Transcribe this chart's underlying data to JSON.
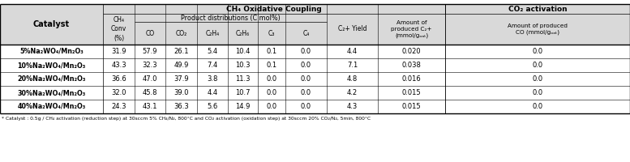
{
  "catalysts": [
    "5%Na₂WO₄/Mn₂O₃",
    "10%Na₂WO₄/Mn₂O₃",
    "20%Na₂WO₄/Mn₂O₃",
    "30%Na₂WO₄/Mn₂O₃",
    "40%Na₂WO₄/Mn₂O₃"
  ],
  "data": [
    [
      31.9,
      57.9,
      26.1,
      5.4,
      10.4,
      0.1,
      0.0,
      4.4,
      0.02,
      0.0
    ],
    [
      43.3,
      32.3,
      49.9,
      7.4,
      10.3,
      0.1,
      0.0,
      7.1,
      0.038,
      0.0
    ],
    [
      36.6,
      47.0,
      37.9,
      3.8,
      11.3,
      0.0,
      0.0,
      4.8,
      0.016,
      0.0
    ],
    [
      32.0,
      45.8,
      39.0,
      4.4,
      10.7,
      0.0,
      0.0,
      4.2,
      0.015,
      0.0
    ],
    [
      24.3,
      43.1,
      36.3,
      5.6,
      14.9,
      0.0,
      0.0,
      4.3,
      0.015,
      0.0
    ]
  ],
  "footnote": "* Catalyst : 0.5g / CH₄ activation (reduction step) at 30sccm 5% CH₄/N₂, 800°C and CO₂ activation (oxidation step) at 30sccm 20% CO₂/N₂, 5min, 800°C",
  "bg_header": "#d9d9d9",
  "bg_white": "#ffffff",
  "border_color": "#000000",
  "title_ch4": "CH₄ Oxidative Coupling",
  "title_co2": "CO₂ activation",
  "col_headers": [
    "CH₄\nConv\n(%)",
    "CO",
    "CO₂",
    "C₂H₄",
    "C₂H₆",
    "C₃",
    "C₄",
    "C₂+ Yield",
    "Amount of\nproduced C₂+\n(mmol/gₒₐₜ)",
    "Amount of produced\nCO (mmol/gₒₐₜ)"
  ],
  "prod_dist_label": "Product distributions (C mol%)"
}
